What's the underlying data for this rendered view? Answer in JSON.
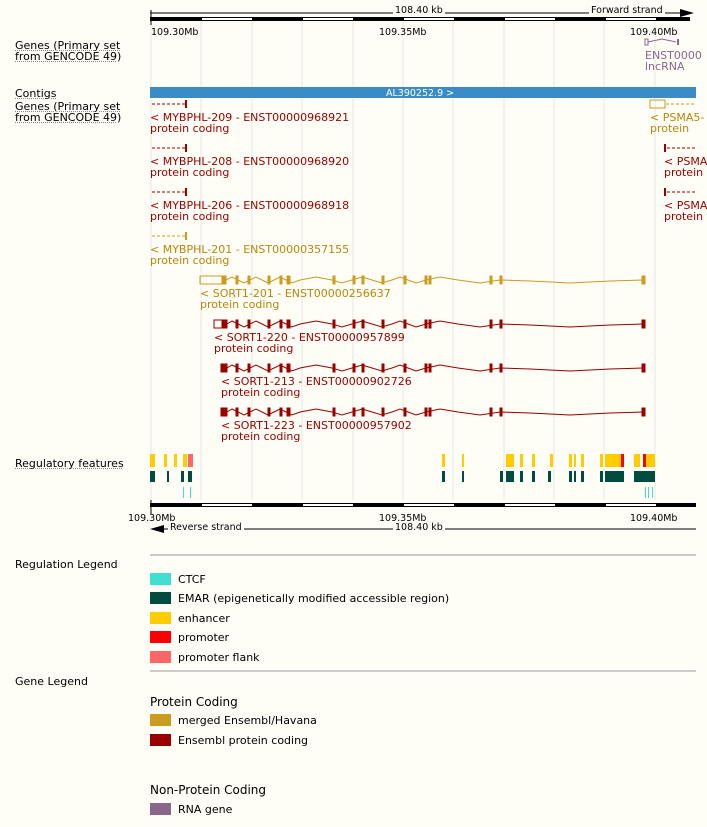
{
  "top_ruler": {
    "span_label": "108.40 kb",
    "strand_label": "Forward strand",
    "ticks": [
      "109.30Mb",
      "109.35Mb",
      "109.40Mb"
    ]
  },
  "bottom_ruler": {
    "span_label": "108.40 kb",
    "strand_label": "Reverse strand",
    "ticks": [
      "109.30Mb",
      "109.35Mb",
      "109.40Mb"
    ]
  },
  "tracks": {
    "genes_forward_label_1": "Genes (Primary set",
    "genes_forward_label_2": "from GENCODE 49)",
    "contigs_label": "Contigs",
    "genes_reverse_label_1": "Genes (Primary set",
    "genes_reverse_label_2": "from GENCODE 49)",
    "regulatory_label": "Regulatory features"
  },
  "forward_gene": {
    "name": "ENST0000",
    "biotype": "lncRNA"
  },
  "contig": {
    "label": "AL390252.9 >"
  },
  "transcripts": [
    {
      "name": "< MYBPHL-209 - ENST00000968921",
      "biotype": "protein coding"
    },
    {
      "name": "< MYBPHL-208 - ENST00000968920",
      "biotype": "protein coding"
    },
    {
      "name": "< MYBPHL-206 - ENST00000968918",
      "biotype": "protein coding"
    },
    {
      "name": "< MYBPHL-201 - ENST00000357155",
      "biotype": "protein coding"
    },
    {
      "name": "< SORT1-201 - ENST00000256637",
      "biotype": "protein coding"
    },
    {
      "name": "< SORT1-220 - ENST00000957899",
      "biotype": "protein coding"
    },
    {
      "name": "< SORT1-213 - ENST00000902726",
      "biotype": "protein coding"
    },
    {
      "name": "< SORT1-223 - ENST00000957902",
      "biotype": "protein coding"
    }
  ],
  "right_transcripts": [
    {
      "name": "< PSMA5-",
      "biotype": "protein"
    },
    {
      "name": "< PSMA",
      "biotype": "protein"
    },
    {
      "name": "< PSMA",
      "biotype": "protein"
    }
  ],
  "regulation_legend": {
    "title": "Regulation Legend",
    "items": [
      {
        "label": "CTCF",
        "color": "#40e0d0"
      },
      {
        "label": "EMAR (epigenetically modified accessible region)",
        "color": "#004d40"
      },
      {
        "label": "enhancer",
        "color": "#ffcc00"
      },
      {
        "label": "promoter",
        "color": "#ff0000"
      },
      {
        "label": "promoter flank",
        "color": "#ff6666"
      }
    ]
  },
  "gene_legend": {
    "title": "Gene Legend",
    "protein_coding_heading": "Protein Coding",
    "protein_coding_items": [
      {
        "label": "merged Ensembl/Havana",
        "color": "#cd9b1d"
      },
      {
        "label": "Ensembl protein coding",
        "color": "#990000"
      }
    ],
    "non_protein_heading": "Non-Protein Coding",
    "non_protein_items": [
      {
        "label": "RNA gene",
        "color": "#8b668b"
      }
    ]
  }
}
